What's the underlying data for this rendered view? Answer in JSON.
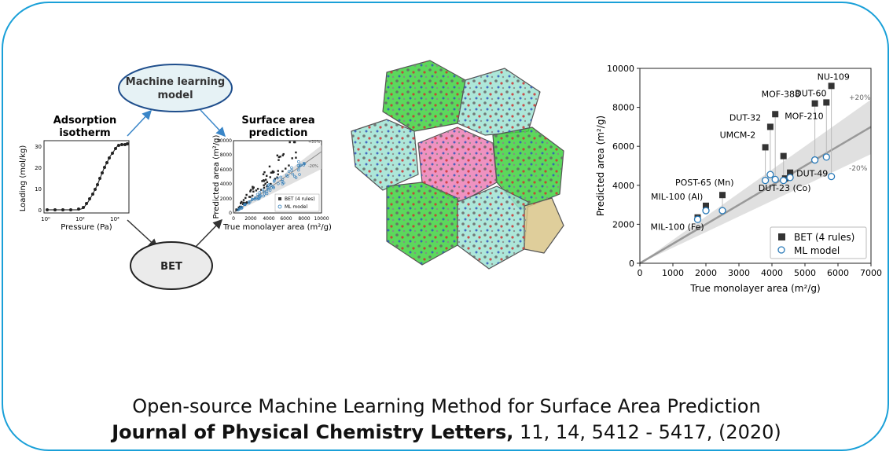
{
  "workflow": {
    "ml_model_label": [
      "Machine learning",
      "model"
    ],
    "isotherm_title": [
      "Adsorption",
      "isotherm"
    ],
    "isotherm_ylabel": "Loading (mol/kg)",
    "isotherm_xlabel": "Pressure (Pa)",
    "isotherm_yticks": [
      "0",
      "10",
      "20",
      "30"
    ],
    "isotherm_xticks": [
      "10⁰",
      "10²",
      "10⁴"
    ],
    "prediction_title": [
      "Surface area",
      "prediction"
    ],
    "small_ylabel": "Predicted area (m²/g)",
    "small_xlabel": "True monolayer area (m²/g)",
    "small_yticks": [
      "0",
      "2000",
      "4000",
      "6000",
      "8000",
      "10000"
    ],
    "small_xticks": [
      "0",
      "2000",
      "4000",
      "6000",
      "8000",
      "10000"
    ],
    "small_legend": [
      "BET (4 rules)",
      "ML model"
    ],
    "small_band_labels": [
      "+20%",
      "-20%"
    ],
    "bet_label": "BET",
    "colors": {
      "ml_fill": "#e6f2f5",
      "ml_border": "#1f4e8c",
      "arrow_blue": "#3a86c8",
      "arrow_dark": "#333333"
    }
  },
  "structure_image": {
    "icon": "mof-crystal-structure",
    "colors": {
      "green": "#3fd13f",
      "teal": "#9fe3d2",
      "pink": "#ec7fb5",
      "tan": "#d9c58a"
    }
  },
  "chart_data": {
    "type": "scatter",
    "xlabel": "True monolayer area (m²/g)",
    "ylabel": "Predicted area (m²/g)",
    "xlim": [
      0,
      7000
    ],
    "ylim": [
      0,
      10000
    ],
    "xticks": [
      0,
      1000,
      2000,
      3000,
      4000,
      5000,
      6000,
      7000
    ],
    "yticks": [
      0,
      2000,
      4000,
      6000,
      8000,
      10000
    ],
    "band_labels": [
      "+20%",
      "-20%"
    ],
    "legend_position": "bottom-right",
    "series": [
      {
        "name": "BET (4 rules)",
        "marker": "square",
        "color": "#333333",
        "points": [
          {
            "label": "NU-109",
            "x": 5800,
            "y": 9100
          },
          {
            "label": "DUT-60",
            "x": 5650,
            "y": 8250
          },
          {
            "label": "MOF-388",
            "x": 5300,
            "y": 8200
          },
          {
            "label": "MOF-210",
            "x": 4100,
            "y": 7650
          },
          {
            "label": "DUT-32",
            "x": 3950,
            "y": 7000
          },
          {
            "label": "UMCM-2",
            "x": 3800,
            "y": 5950
          },
          {
            "label": "",
            "x": 4350,
            "y": 5500
          },
          {
            "label": "DUT-49",
            "x": 4550,
            "y": 4650
          },
          {
            "label": "DUT-23 (Co)",
            "x": 4400,
            "y": 4350
          },
          {
            "label": "POST-65 (Mn)",
            "x": 2500,
            "y": 3500
          },
          {
            "label": "MIL-100 (Al)",
            "x": 2000,
            "y": 2950
          },
          {
            "label": "MIL-100 (Fe)",
            "x": 1750,
            "y": 2350
          }
        ]
      },
      {
        "name": "ML model",
        "marker": "circle",
        "color": "#2a7ab8",
        "points": [
          {
            "x": 5800,
            "y": 4450
          },
          {
            "x": 5650,
            "y": 5450
          },
          {
            "x": 5300,
            "y": 5300
          },
          {
            "x": 4100,
            "y": 4300
          },
          {
            "x": 3950,
            "y": 4550
          },
          {
            "x": 3800,
            "y": 4250
          },
          {
            "x": 4350,
            "y": 4250
          },
          {
            "x": 4550,
            "y": 4400
          },
          {
            "x": 2500,
            "y": 2700
          },
          {
            "x": 2000,
            "y": 2700
          },
          {
            "x": 1750,
            "y": 2250
          }
        ]
      }
    ]
  },
  "caption": {
    "title": "Open-source Machine Learning Method for Surface Area Prediction",
    "journal": "Journal of Physical Chemistry Letters,",
    "citation": " 11, 14, 5412 - 5417, (2020)"
  }
}
